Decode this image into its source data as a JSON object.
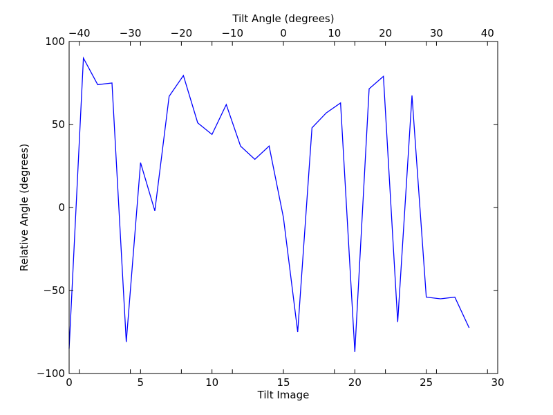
{
  "chart_data": {
    "type": "line",
    "title": "",
    "xlabel": "Tilt Image",
    "ylabel": "Relative Angle (degrees)",
    "x2label": "Tilt Angle (degrees)",
    "xlim": [
      0,
      30
    ],
    "ylim": [
      -100,
      100
    ],
    "x2lim": [
      -42,
      42
    ],
    "grid": false,
    "legend": "none",
    "x_ticks": [
      0,
      5,
      10,
      15,
      20,
      25,
      30
    ],
    "x_tick_labels": [
      "0",
      "5",
      "10",
      "15",
      "20",
      "25",
      "30"
    ],
    "y_ticks": [
      -100,
      -50,
      0,
      50,
      100
    ],
    "y_tick_labels": [
      "−100",
      "−50",
      "0",
      "50",
      "100"
    ],
    "x2_ticks": [
      -40,
      -30,
      -20,
      -10,
      0,
      10,
      20,
      30,
      40
    ],
    "x2_tick_labels": [
      "−40",
      "−30",
      "−20",
      "−10",
      "0",
      "10",
      "20",
      "30",
      "40"
    ],
    "series": [
      {
        "color": "#0000ff",
        "x": [
          0,
          1,
          2,
          3,
          4,
          5,
          6,
          7,
          8,
          9,
          10,
          11,
          12,
          13,
          14,
          15,
          16,
          17,
          18,
          19,
          20,
          21,
          22,
          23,
          24,
          25,
          26,
          27,
          28
        ],
        "y": [
          -85,
          90,
          74,
          75,
          -81,
          27,
          -2,
          67,
          79.5,
          51,
          44,
          62,
          37,
          29,
          37,
          -6,
          -75,
          48,
          57,
          63,
          -87,
          71.5,
          79,
          -69,
          67.5,
          -54,
          -55,
          -54,
          -72.5
        ]
      }
    ]
  }
}
